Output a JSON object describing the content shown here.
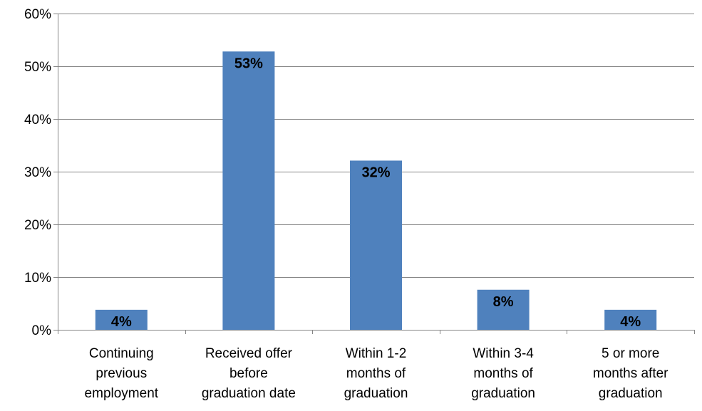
{
  "chart_data": {
    "type": "bar",
    "categories": [
      [
        "Continuing",
        "previous",
        "employment"
      ],
      [
        "Received offer",
        "before",
        "graduation date"
      ],
      [
        "Within 1-2",
        "months of",
        "graduation"
      ],
      [
        "Within 3-4",
        "months of",
        "graduation"
      ],
      [
        "5 or more",
        "months after",
        "graduation"
      ]
    ],
    "values": [
      3.8,
      52.8,
      32.1,
      7.6,
      3.8
    ],
    "data_labels": [
      "4%",
      "53%",
      "32%",
      "8%",
      "4%"
    ],
    "ylim": [
      0,
      60
    ],
    "yticks": [
      0,
      10,
      20,
      30,
      40,
      50,
      60
    ],
    "ytick_labels": [
      "0%",
      "10%",
      "20%",
      "30%",
      "40%",
      "50%",
      "60%"
    ],
    "grid": true,
    "legend": "none",
    "colors": {
      "bar": "#4F81BD"
    }
  }
}
